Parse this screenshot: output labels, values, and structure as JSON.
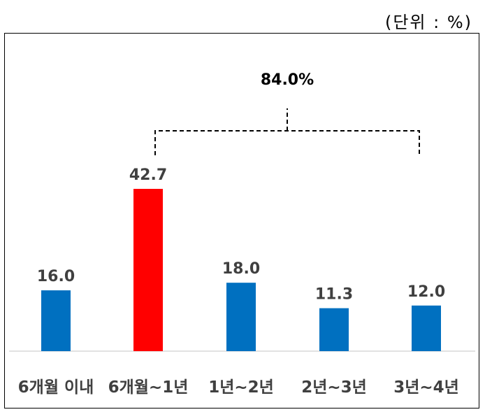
{
  "header": {
    "title_partial": "",
    "unit_label": "(단위 : %)"
  },
  "chart_data": {
    "type": "bar",
    "categories": [
      "6개월 이내",
      "6개월~1년",
      "1년~2년",
      "2년~3년",
      "3년~4년"
    ],
    "values": [
      16.0,
      42.7,
      18.0,
      11.3,
      12.0
    ],
    "value_labels": [
      "16.0",
      "42.7",
      "18.0",
      "11.3",
      "12.0"
    ],
    "colors": [
      "#0070C0",
      "#FF0000",
      "#0070C0",
      "#0070C0",
      "#0070C0"
    ],
    "ylim": [
      0,
      50
    ],
    "grid": false,
    "legend": "none",
    "annotation": {
      "text": "84.0%",
      "spans_categories": [
        "6개월~1년",
        "1년~2년",
        "2년~3년",
        "3년~4년"
      ]
    },
    "title": "",
    "xlabel": "",
    "ylabel": ""
  }
}
